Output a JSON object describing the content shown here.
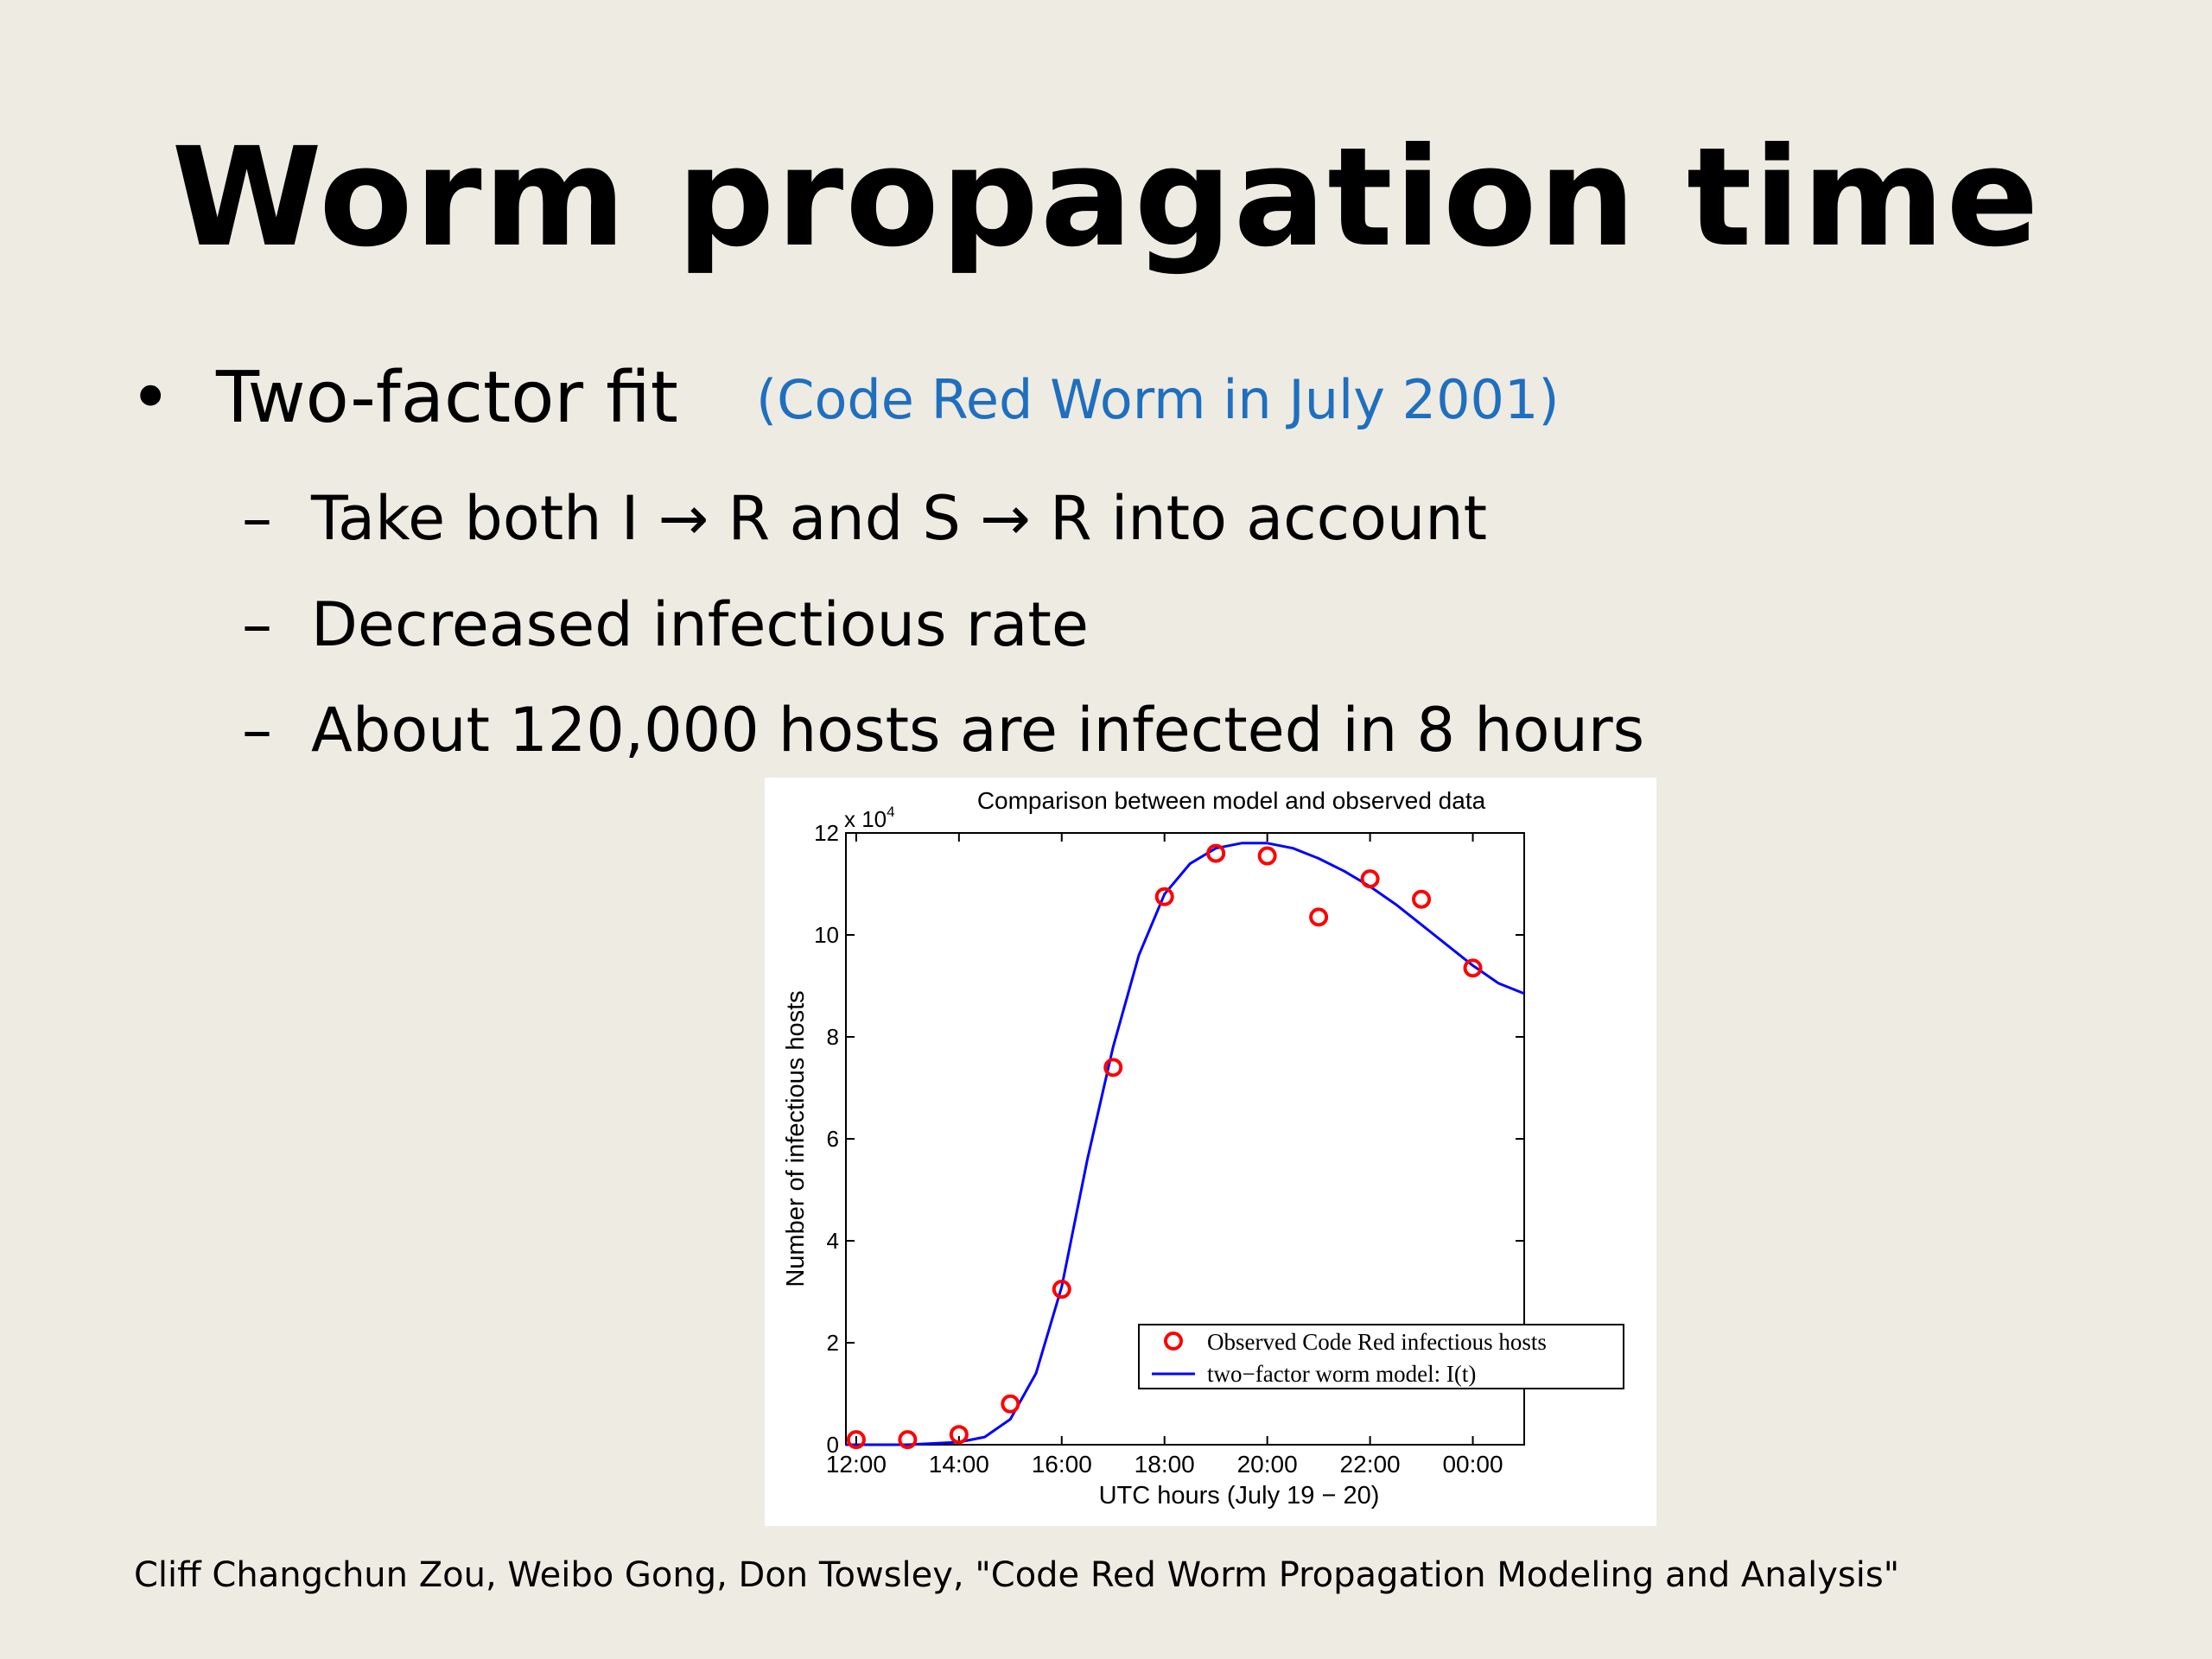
{
  "slide": {
    "title": "Worm propagation time",
    "bullet_main": "Two-factor fit",
    "bullet_main_note": "(Code Red Worm in July 2001)",
    "sub_bullets": [
      "Take both I → R and S → R into account",
      "Decreased infectious rate",
      "About 120,000 hosts are infected in 8 hours"
    ],
    "bullet_symbol": "•",
    "dash_symbol": "–",
    "citation": "Cliff Changchun Zou, Weibo Gong, Don Towsley, \"Code Red Worm Propagation Modeling and Analysis\"",
    "colors": {
      "background": "#eeebe2",
      "note": "#1f6fbf"
    }
  },
  "chart_data": {
    "type": "scatter",
    "title": "Comparison between model and observed data",
    "xlabel": "UTC hours (July 19 − 20)",
    "ylabel": "Number of infectious hosts",
    "y_multiplier_label": "x 10",
    "y_multiplier_exp": "4",
    "xlim": [
      11.8,
      25.0
    ],
    "ylim": [
      0,
      12
    ],
    "x_ticks": [
      12,
      14,
      16,
      18,
      20,
      22,
      24
    ],
    "x_tick_labels": [
      "12:00",
      "14:00",
      "16:00",
      "18:00",
      "20:00",
      "22:00",
      "00:00"
    ],
    "y_ticks": [
      0,
      2,
      4,
      6,
      8,
      10,
      12
    ],
    "y_tick_labels": [
      "0",
      "2",
      "4",
      "6",
      "8",
      "10",
      "12"
    ],
    "grid": false,
    "legend_position": "bottom-right",
    "series": [
      {
        "name": "Observed Code Red infectious hosts",
        "kind": "points",
        "color": "#ff0000",
        "x": [
          12,
          13,
          14,
          15,
          16,
          17,
          18,
          19,
          20,
          21,
          22,
          23,
          24
        ],
        "y": [
          0.1,
          0.1,
          0.2,
          0.8,
          3.05,
          7.4,
          10.75,
          11.6,
          11.55,
          10.35,
          11.1,
          10.7,
          9.35
        ]
      },
      {
        "name": "two−factor worm model: I(t)",
        "kind": "line",
        "color": "#0000ff",
        "x": [
          11.8,
          13.0,
          14.0,
          14.5,
          15.0,
          15.5,
          16.0,
          16.5,
          17.0,
          17.5,
          18.0,
          18.5,
          19.0,
          19.5,
          20.0,
          20.5,
          21.0,
          21.5,
          22.0,
          22.5,
          23.0,
          23.5,
          24.0,
          24.5,
          25.0
        ],
        "y": [
          0.0,
          0.0,
          0.05,
          0.15,
          0.5,
          1.4,
          3.1,
          5.6,
          7.8,
          9.6,
          10.8,
          11.4,
          11.7,
          11.8,
          11.8,
          11.7,
          11.5,
          11.25,
          10.95,
          10.6,
          10.2,
          9.8,
          9.4,
          9.05,
          8.85
        ]
      }
    ]
  }
}
